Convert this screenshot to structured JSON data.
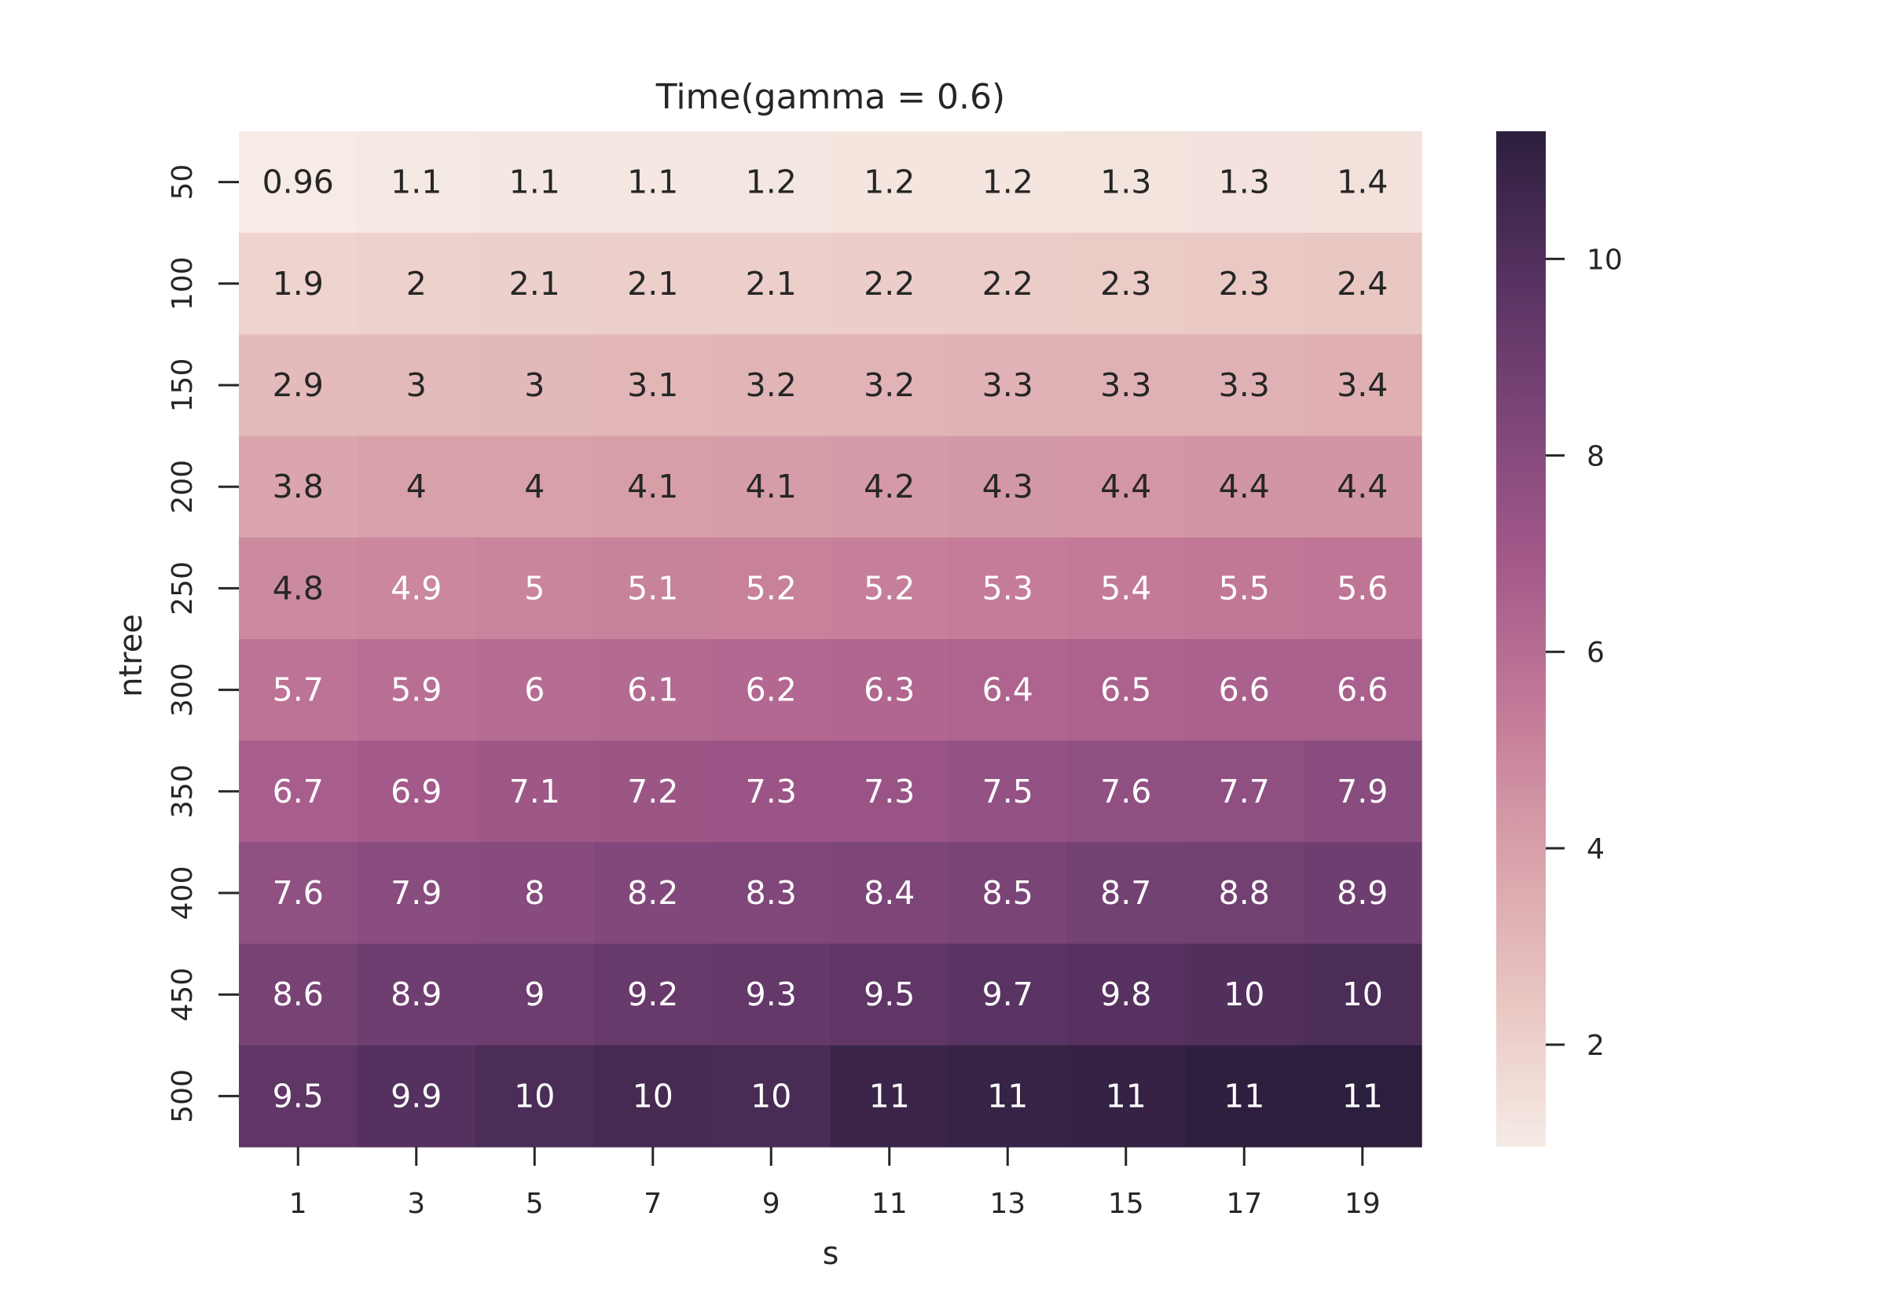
{
  "chart_data": {
    "type": "heatmap",
    "title": "Time(gamma = 0.6)",
    "xlabel": "s",
    "ylabel": "ntree",
    "x_categories": [
      "1",
      "3",
      "5",
      "7",
      "9",
      "11",
      "13",
      "15",
      "17",
      "19"
    ],
    "y_categories": [
      "50",
      "100",
      "150",
      "200",
      "250",
      "300",
      "350",
      "400",
      "450",
      "500"
    ],
    "values": [
      [
        0.96,
        1.05,
        1.1,
        1.1,
        1.15,
        1.2,
        1.2,
        1.25,
        1.3,
        1.35
      ],
      [
        1.9,
        2.0,
        2.05,
        2.1,
        2.1,
        2.15,
        2.2,
        2.25,
        2.3,
        2.4
      ],
      [
        2.9,
        2.95,
        3.0,
        3.1,
        3.15,
        3.2,
        3.25,
        3.3,
        3.3,
        3.4
      ],
      [
        3.8,
        3.95,
        4.0,
        4.05,
        4.1,
        4.2,
        4.3,
        4.35,
        4.4,
        4.4
      ],
      [
        4.8,
        4.9,
        5.0,
        5.1,
        5.15,
        5.2,
        5.3,
        5.4,
        5.5,
        5.6
      ],
      [
        5.7,
        5.9,
        6.0,
        6.1,
        6.2,
        6.3,
        6.4,
        6.5,
        6.55,
        6.6
      ],
      [
        6.7,
        6.9,
        7.1,
        7.2,
        7.25,
        7.3,
        7.5,
        7.6,
        7.7,
        7.9
      ],
      [
        7.6,
        7.9,
        8.0,
        8.2,
        8.3,
        8.4,
        8.5,
        8.7,
        8.8,
        8.9
      ],
      [
        8.6,
        8.9,
        9.0,
        9.2,
        9.3,
        9.5,
        9.7,
        9.8,
        10.0,
        10.2
      ],
      [
        9.5,
        9.9,
        10.2,
        10.4,
        10.3,
        10.8,
        10.9,
        11.0,
        11.2,
        11.3
      ]
    ],
    "labels": [
      [
        "0.96",
        "1.1",
        "1.1",
        "1.1",
        "1.2",
        "1.2",
        "1.2",
        "1.3",
        "1.3",
        "1.4"
      ],
      [
        "1.9",
        "2",
        "2.1",
        "2.1",
        "2.1",
        "2.2",
        "2.2",
        "2.3",
        "2.3",
        "2.4"
      ],
      [
        "2.9",
        "3",
        "3",
        "3.1",
        "3.2",
        "3.2",
        "3.3",
        "3.3",
        "3.3",
        "3.4"
      ],
      [
        "3.8",
        "4",
        "4",
        "4.1",
        "4.1",
        "4.2",
        "4.3",
        "4.4",
        "4.4",
        "4.4"
      ],
      [
        "4.8",
        "4.9",
        "5",
        "5.1",
        "5.2",
        "5.2",
        "5.3",
        "5.4",
        "5.5",
        "5.6"
      ],
      [
        "5.7",
        "5.9",
        "6",
        "6.1",
        "6.2",
        "6.3",
        "6.4",
        "6.5",
        "6.6",
        "6.6"
      ],
      [
        "6.7",
        "6.9",
        "7.1",
        "7.2",
        "7.3",
        "7.3",
        "7.5",
        "7.6",
        "7.7",
        "7.9"
      ],
      [
        "7.6",
        "7.9",
        "8",
        "8.2",
        "8.3",
        "8.4",
        "8.5",
        "8.7",
        "8.8",
        "8.9"
      ],
      [
        "8.6",
        "8.9",
        "9",
        "9.2",
        "9.3",
        "9.5",
        "9.7",
        "9.8",
        "10",
        "10"
      ],
      [
        "9.5",
        "9.9",
        "10",
        "10",
        "10",
        "11",
        "11",
        "11",
        "11",
        "11"
      ]
    ],
    "colorbar": {
      "vmin": 0.96,
      "vmax": 11.3,
      "ticks": [
        2,
        4,
        6,
        8,
        10
      ]
    },
    "colormap": [
      "#f6ebe5",
      "#e9c6c2",
      "#d9a2aa",
      "#c37a98",
      "#a45a8a",
      "#7e4679",
      "#563260",
      "#2c1e3d"
    ],
    "text_colors": {
      "light": "#ffffff",
      "dark": "#262626"
    },
    "grid": false
  }
}
